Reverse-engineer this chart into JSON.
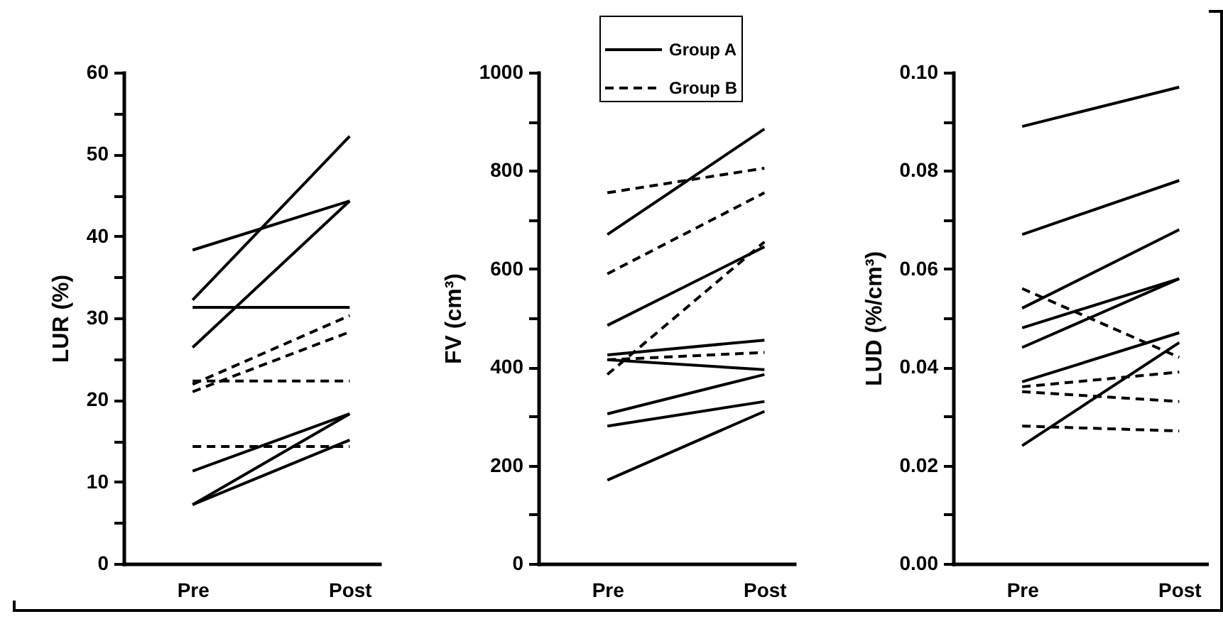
{
  "chart_data": [
    {
      "type": "line",
      "categories": [
        "Pre",
        "Post"
      ],
      "ylabel": "LUR (%)",
      "ylim": [
        0,
        60
      ],
      "yticks": [
        0,
        {
          "value": 5,
          "label": null
        },
        10,
        {
          "value": 15,
          "label": null
        },
        20,
        {
          "value": 25,
          "label": null
        },
        30,
        {
          "value": 35,
          "label": null
        },
        40,
        {
          "value": 45,
          "label": null
        },
        50,
        {
          "value": 55,
          "label": null
        },
        60
      ],
      "grid": false,
      "marker": "none",
      "series": [
        {
          "color": "#000000",
          "line_style": "solid",
          "values": [
            38.3,
            44.3
          ]
        },
        {
          "color": "#000000",
          "line_style": "solid",
          "values": [
            32.2,
            52.2
          ]
        },
        {
          "color": "#000000",
          "line_style": "solid",
          "values": [
            26.4,
            44.3
          ]
        },
        {
          "color": "#000000",
          "line_style": "solid",
          "values": [
            31.3,
            31.3
          ]
        },
        {
          "color": "#000000",
          "line_style": "solid",
          "values": [
            11.3,
            18.3
          ]
        },
        {
          "color": "#000000",
          "line_style": "solid",
          "values": [
            7.2,
            18.3
          ]
        },
        {
          "color": "#000000",
          "line_style": "solid",
          "values": [
            7.2,
            15.1
          ]
        },
        {
          "color": "#000000",
          "line_style": "dashed",
          "values": [
            21.9,
            30.3
          ]
        },
        {
          "color": "#000000",
          "line_style": "dashed",
          "values": [
            21.0,
            28.3
          ]
        },
        {
          "color": "#000000",
          "line_style": "dashed",
          "values": [
            22.3,
            22.3
          ]
        },
        {
          "color": "#000000",
          "line_style": "dashed",
          "values": [
            14.3,
            14.3
          ]
        }
      ]
    },
    {
      "type": "line",
      "categories": [
        "Pre",
        "Post"
      ],
      "ylabel": "FV (cm³)",
      "ylim": [
        0,
        1000
      ],
      "yticks": [
        0,
        {
          "value": 100,
          "label": null
        },
        200,
        {
          "value": 300,
          "label": null
        },
        400,
        {
          "value": 500,
          "label": null
        },
        600,
        {
          "value": 700,
          "label": null
        },
        800,
        {
          "value": 900,
          "label": null
        },
        1000
      ],
      "grid": false,
      "marker": "none",
      "legend": "top",
      "series": [
        {
          "name": "Group A",
          "color": "#000000",
          "line_style": "solid",
          "values": [
            670,
            885
          ]
        },
        {
          "color": "#000000",
          "line_style": "solid",
          "values": [
            485,
            645
          ]
        },
        {
          "color": "#000000",
          "line_style": "solid",
          "values": [
            425,
            455
          ]
        },
        {
          "color": "#000000",
          "line_style": "solid",
          "values": [
            415,
            395
          ]
        },
        {
          "color": "#000000",
          "line_style": "solid",
          "values": [
            305,
            385
          ]
        },
        {
          "color": "#000000",
          "line_style": "solid",
          "values": [
            280,
            330
          ]
        },
        {
          "color": "#000000",
          "line_style": "solid",
          "values": [
            170,
            310
          ]
        },
        {
          "name": "Group B",
          "color": "#000000",
          "line_style": "dashed",
          "values": [
            755,
            805
          ]
        },
        {
          "color": "#000000",
          "line_style": "dashed",
          "values": [
            590,
            755
          ]
        },
        {
          "color": "#000000",
          "line_style": "dashed",
          "values": [
            385,
            655
          ]
        },
        {
          "color": "#000000",
          "line_style": "dashed",
          "values": [
            415,
            430
          ]
        }
      ]
    },
    {
      "type": "line",
      "categories": [
        "Pre",
        "Post"
      ],
      "ylabel": "LUD (%/cm³)",
      "ylim": [
        0,
        0.1
      ],
      "yticks": [
        {
          "value": 0,
          "label": "0.00"
        },
        {
          "value": 0.01,
          "label": null
        },
        {
          "value": 0.02,
          "label": "0.02"
        },
        {
          "value": 0.03,
          "label": null
        },
        {
          "value": 0.04,
          "label": "0.04"
        },
        {
          "value": 0.05,
          "label": null
        },
        {
          "value": 0.06,
          "label": "0.06"
        },
        {
          "value": 0.07,
          "label": null
        },
        {
          "value": 0.08,
          "label": "0.08"
        },
        {
          "value": 0.09,
          "label": null
        },
        {
          "value": 0.1,
          "label": "0.10"
        }
      ],
      "grid": false,
      "marker": "none",
      "series": [
        {
          "color": "#000000",
          "line_style": "solid",
          "values": [
            0.089,
            0.097
          ]
        },
        {
          "color": "#000000",
          "line_style": "solid",
          "values": [
            0.067,
            0.078
          ]
        },
        {
          "color": "#000000",
          "line_style": "solid",
          "values": [
            0.052,
            0.068
          ]
        },
        {
          "color": "#000000",
          "line_style": "solid",
          "values": [
            0.048,
            0.058
          ]
        },
        {
          "color": "#000000",
          "line_style": "solid",
          "values": [
            0.044,
            0.058
          ]
        },
        {
          "color": "#000000",
          "line_style": "solid",
          "values": [
            0.037,
            0.047
          ]
        },
        {
          "color": "#000000",
          "line_style": "solid",
          "values": [
            0.024,
            0.045
          ]
        },
        {
          "color": "#000000",
          "line_style": "dashed",
          "values": [
            0.056,
            0.042
          ]
        },
        {
          "color": "#000000",
          "line_style": "dashed",
          "values": [
            0.036,
            0.039
          ]
        },
        {
          "color": "#000000",
          "line_style": "dashed",
          "values": [
            0.035,
            0.033
          ]
        },
        {
          "color": "#000000",
          "line_style": "dashed",
          "values": [
            0.028,
            0.027
          ]
        }
      ]
    }
  ]
}
